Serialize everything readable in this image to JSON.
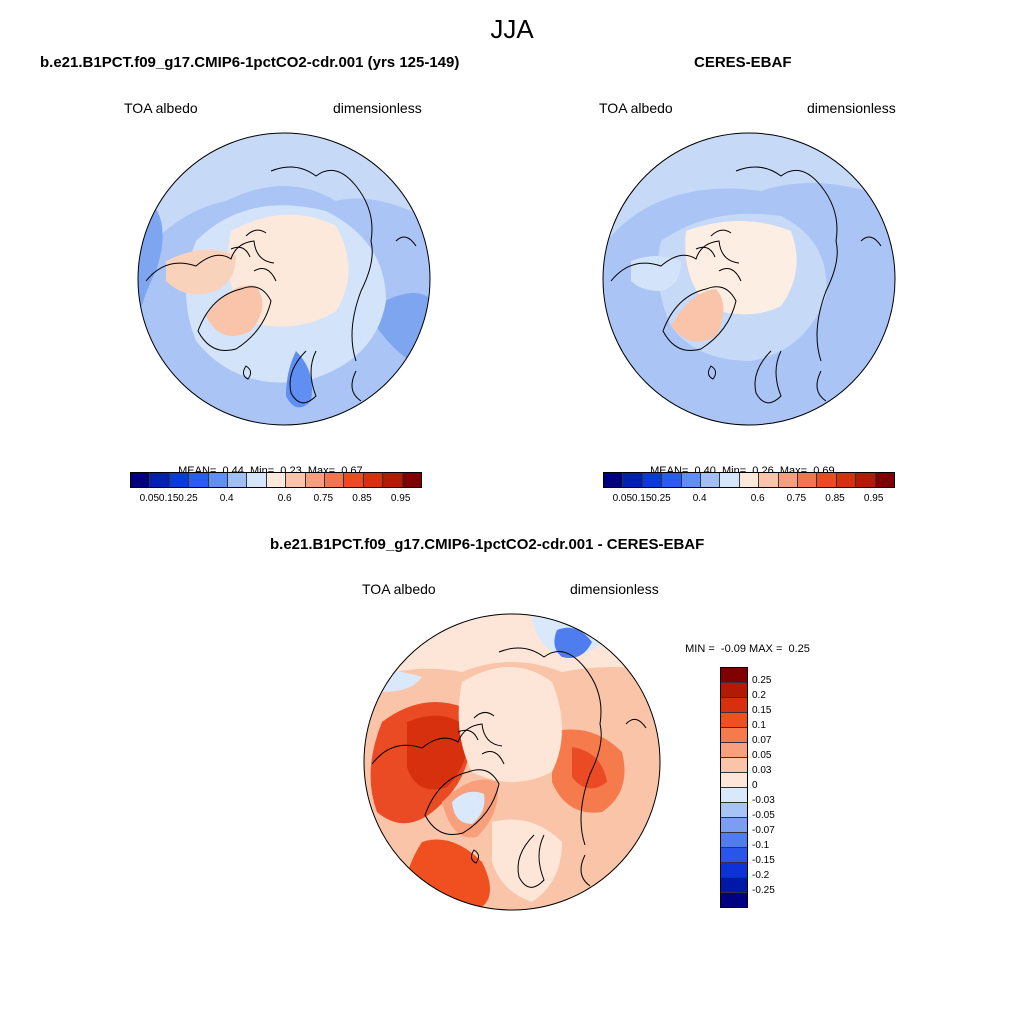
{
  "figure": {
    "season": "JJA"
  },
  "panels": [
    {
      "title": "b.e21.B1PCT.f09_g17.CMIP6-1pctCO2-cdr.001 (yrs 125-149)",
      "variable": "TOA albedo",
      "units": "dimensionless",
      "stats": {
        "mean_label": "MEAN=",
        "mean": "0.44",
        "min_label": "Min=",
        "min": "0.23",
        "max_label": "Max=",
        "max": "0.67"
      }
    },
    {
      "title": "CERES-EBAF",
      "variable": "TOA albedo",
      "units": "dimensionless",
      "stats": {
        "mean_label": "MEAN=",
        "mean": "0.40",
        "min_label": "Min=",
        "min": "0.26",
        "max_label": "Max=",
        "max": "0.69"
      }
    },
    {
      "title": "b.e21.B1PCT.f09_g17.CMIP6-1pctCO2-cdr.001 - CERES-EBAF",
      "variable": "TOA albedo",
      "units": "dimensionless",
      "stats": {
        "min_label": "MIN =",
        "min": "-0.09",
        "max_label": "MAX =",
        "max": "0.25"
      }
    }
  ],
  "albedo_colorbar": {
    "colors": [
      "#00007f",
      "#0020b0",
      "#0a3ad8",
      "#2a5cf0",
      "#5f8ff3",
      "#a1bff5",
      "#d6e6fa",
      "#fde9dc",
      "#f9c4a9",
      "#f69e7d",
      "#f27552",
      "#ea4a24",
      "#d7300e",
      "#b31a04",
      "#800000"
    ],
    "labels": [
      "0.05",
      "0.15",
      "0.25",
      "0.4",
      "0.6",
      "0.75",
      "0.85",
      "0.95"
    ]
  },
  "diff_colorbar": {
    "colors": [
      "#800000",
      "#b31a04",
      "#d7300e",
      "#f0501f",
      "#f57a4c",
      "#f8a07c",
      "#fac4a8",
      "#fde6d8",
      "#d9e8fb",
      "#a8c4f5",
      "#7a9ff0",
      "#4f7cee",
      "#2a55ea",
      "#0d33d8",
      "#0018a8",
      "#000080"
    ],
    "labels": [
      "0.25",
      "0.2",
      "0.15",
      "0.1",
      "0.07",
      "0.05",
      "0.03",
      "0",
      "-0.03",
      "-0.05",
      "-0.07",
      "-0.1",
      "-0.15",
      "-0.2",
      "-0.25"
    ]
  }
}
